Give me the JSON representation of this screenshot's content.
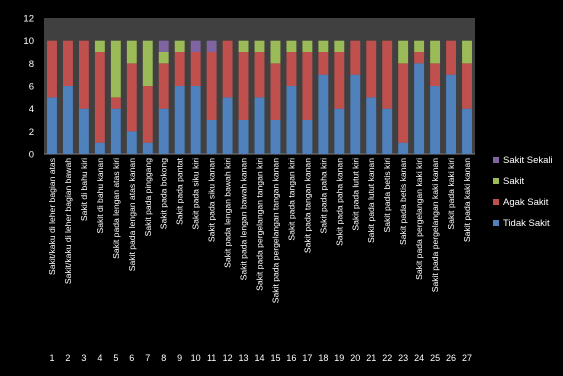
{
  "chart_data": {
    "type": "bar",
    "stacked": true,
    "title": "",
    "xlabel": "",
    "ylabel": "",
    "ylim": [
      0,
      12
    ],
    "yticks": [
      0,
      2,
      4,
      6,
      8,
      10,
      12
    ],
    "grid": false,
    "legend_position": "right",
    "numbers": [
      "1",
      "2",
      "3",
      "4",
      "5",
      "6",
      "7",
      "8",
      "9",
      "10",
      "11",
      "12",
      "13",
      "14",
      "15",
      "16",
      "17",
      "18",
      "19",
      "20",
      "21",
      "22",
      "23",
      "24",
      "25",
      "26",
      "27"
    ],
    "categories": [
      "Sakit/kaku di leher bagian atas",
      "Sakit/kaku di leher bagian bawah",
      "Sakit di bahu kiri",
      "Sakit di bahu kanan",
      "Sakit pada lengan atas kiri",
      "Sakit pada lengan atas kanan",
      "Sakit pada pinggang",
      "Sakit pada bokong",
      "Sakit pada pantat",
      "Sakit pada siku kiri",
      "Sakit pada siku kanan",
      "Sakit pada lengan bawah kiri",
      "Sakit pada lengan bawah kanan",
      "Sakit pada pergelangan tangan kiri",
      "Sakit pada pergelangan tangan kanan",
      "Sakit pada tangan kiri",
      "Sakit pada tangan kanan",
      "Sakit pada paha kiri",
      "Sakit pada paha kanan",
      "Sakit pada lutut kiri",
      "Sakit pada lutut kanan",
      "Sakit pada betis kiri",
      "Sakit pada betis kanan",
      "Sakit pada pergelangan kaki kiri",
      "Sakit pada pergelangan kaki kanan",
      "Sakit pada kaki kiri",
      "Sakit pada kaki kanan"
    ],
    "series": [
      {
        "name": "Tidak Sakit",
        "color": "#4f81bd",
        "values": [
          5,
          6,
          4,
          1,
          4,
          2,
          1,
          4,
          6,
          6,
          3,
          5,
          3,
          5,
          3,
          6,
          3,
          7,
          4,
          7,
          5,
          4,
          1,
          8,
          6,
          7,
          4
        ]
      },
      {
        "name": "Agak Sakit",
        "color": "#c0504d",
        "values": [
          5,
          4,
          6,
          8,
          1,
          6,
          5,
          4,
          3,
          3,
          6,
          5,
          6,
          4,
          5,
          3,
          6,
          2,
          5,
          3,
          5,
          6,
          7,
          1,
          2,
          3,
          4
        ]
      },
      {
        "name": "Sakit",
        "color": "#9bbb59",
        "values": [
          0,
          0,
          0,
          1,
          5,
          2,
          4,
          1,
          1,
          0,
          0,
          0,
          1,
          1,
          2,
          1,
          1,
          1,
          1,
          0,
          0,
          0,
          2,
          1,
          2,
          0,
          2
        ]
      },
      {
        "name": "Sakit Sekali",
        "color": "#8064a2",
        "values": [
          0,
          0,
          0,
          0,
          0,
          0,
          0,
          1,
          0,
          1,
          1,
          0,
          0,
          0,
          0,
          0,
          0,
          0,
          0,
          0,
          0,
          0,
          0,
          0,
          0,
          0,
          0
        ]
      }
    ],
    "colors": {
      "background": "#000000",
      "plot_background": "#404040",
      "text": "#ffffff"
    }
  }
}
